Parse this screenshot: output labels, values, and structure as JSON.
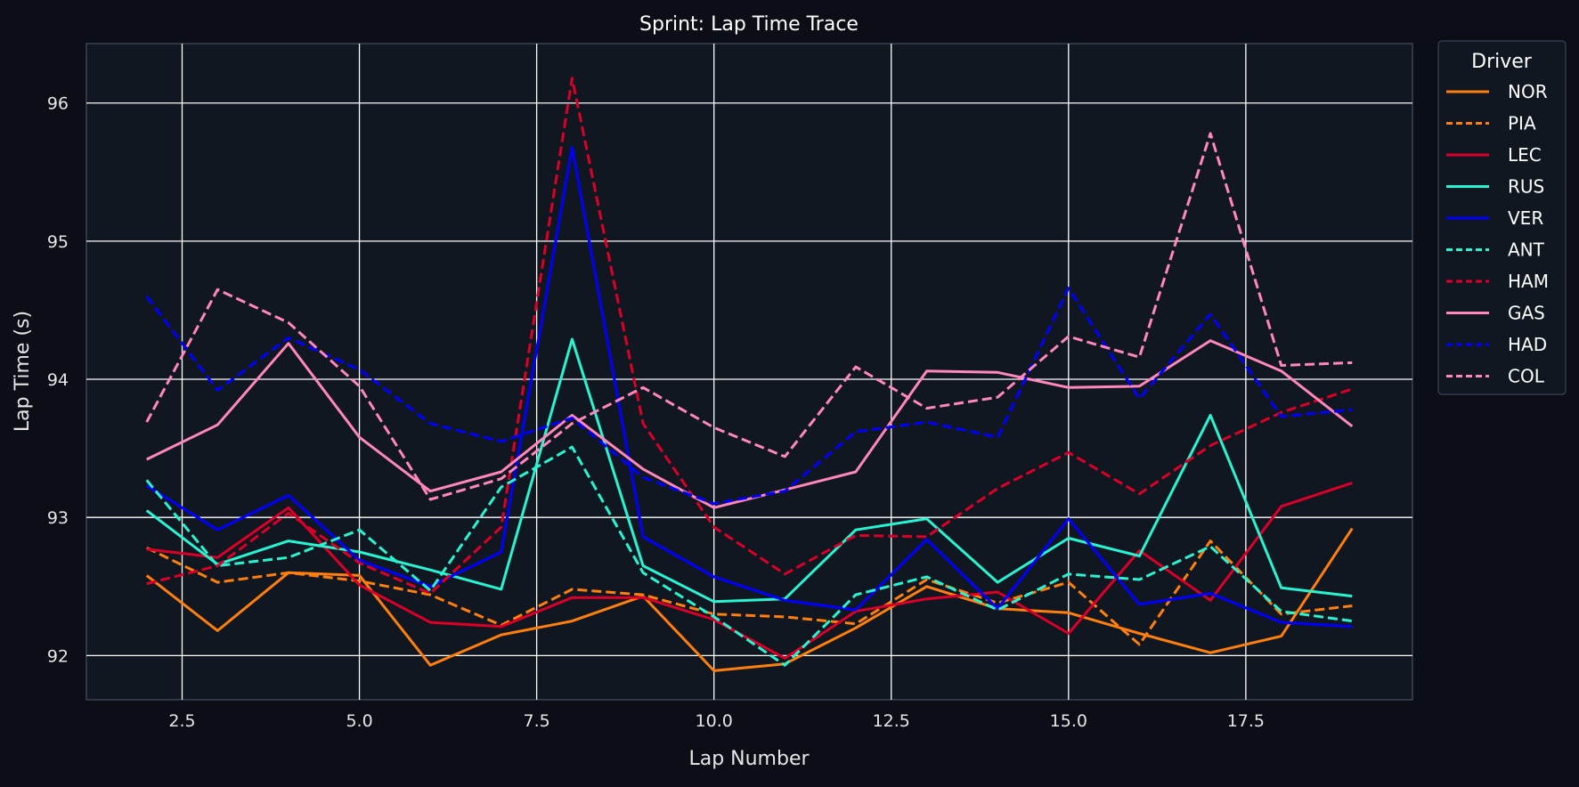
{
  "chart_data": {
    "type": "line",
    "title": "Sprint: Lap Time Trace",
    "xlabel": "Lap Number",
    "ylabel": "Lap Time (s)",
    "xlim": [
      1.15,
      19.85
    ],
    "ylim": [
      91.68,
      96.43
    ],
    "xticks": [
      2.5,
      5.0,
      7.5,
      10.0,
      12.5,
      15.0,
      17.5
    ],
    "xtick_labels": [
      "2.5",
      "5.0",
      "7.5",
      "10.0",
      "12.5",
      "15.0",
      "17.5"
    ],
    "yticks": [
      92,
      93,
      94,
      95,
      96
    ],
    "ytick_labels": [
      "92",
      "93",
      "94",
      "95",
      "96"
    ],
    "grid": true,
    "legend_title": "Driver",
    "legend_placement": "outside-right",
    "x": [
      2,
      3,
      4,
      5,
      6,
      7,
      8,
      9,
      10,
      11,
      12,
      13,
      14,
      15,
      16,
      17,
      18,
      19
    ],
    "series": [
      {
        "name": "NOR",
        "color": "#ff7f0e",
        "dash": "solid",
        "values": [
          92.58,
          92.18,
          92.6,
          92.58,
          91.93,
          92.15,
          92.25,
          92.43,
          91.89,
          91.94,
          92.2,
          92.5,
          92.34,
          92.31,
          92.16,
          92.02,
          92.14,
          92.92
        ]
      },
      {
        "name": "PIA",
        "color": "#ff7f0e",
        "dash": "dashed",
        "values": [
          92.78,
          92.53,
          92.6,
          92.54,
          92.44,
          92.22,
          92.48,
          92.44,
          92.3,
          92.28,
          92.23,
          92.55,
          92.38,
          92.53,
          92.08,
          92.83,
          92.3,
          92.36
        ]
      },
      {
        "name": "LEC",
        "color": "#dc0028",
        "dash": "solid",
        "values": [
          92.77,
          92.71,
          93.07,
          92.51,
          92.24,
          92.21,
          92.42,
          92.42,
          92.26,
          91.98,
          92.32,
          92.41,
          92.46,
          92.16,
          92.76,
          92.4,
          93.08,
          93.25
        ]
      },
      {
        "name": "RUS",
        "color": "#27f4d2",
        "dash": "solid",
        "values": [
          93.05,
          92.66,
          92.83,
          92.75,
          92.62,
          92.48,
          94.29,
          92.65,
          92.39,
          92.41,
          92.91,
          92.99,
          92.53,
          92.85,
          92.72,
          93.74,
          92.49,
          92.43
        ]
      },
      {
        "name": "VER",
        "color": "#0000ff",
        "dash": "solid",
        "values": [
          93.23,
          92.91,
          93.16,
          92.69,
          92.5,
          92.75,
          95.68,
          92.86,
          92.57,
          92.4,
          92.33,
          92.84,
          92.34,
          92.99,
          92.37,
          92.45,
          92.24,
          92.21
        ]
      },
      {
        "name": "ANT",
        "color": "#27f4d2",
        "dash": "dashed",
        "values": [
          93.27,
          92.65,
          92.71,
          92.91,
          92.47,
          93.22,
          93.51,
          92.6,
          92.28,
          91.93,
          92.44,
          92.57,
          92.33,
          92.59,
          92.55,
          92.79,
          92.32,
          92.25
        ]
      },
      {
        "name": "HAM",
        "color": "#dc0028",
        "dash": "dashed",
        "values": [
          92.52,
          92.65,
          93.03,
          92.67,
          92.45,
          92.93,
          96.18,
          93.68,
          92.93,
          92.59,
          92.87,
          92.86,
          93.21,
          93.47,
          93.17,
          93.52,
          93.76,
          93.93
        ]
      },
      {
        "name": "GAS",
        "color": "#ff87bc",
        "dash": "solid",
        "values": [
          93.42,
          93.67,
          94.26,
          93.58,
          93.19,
          93.33,
          93.74,
          93.35,
          93.07,
          93.2,
          93.33,
          94.06,
          94.05,
          93.94,
          93.95,
          94.28,
          94.06,
          93.66
        ]
      },
      {
        "name": "HAD",
        "color": "#0000ff",
        "dash": "dashed",
        "values": [
          94.6,
          93.92,
          94.3,
          94.07,
          93.68,
          93.55,
          93.72,
          93.29,
          93.1,
          93.19,
          93.62,
          93.69,
          93.58,
          94.66,
          93.86,
          94.47,
          93.73,
          93.78
        ]
      },
      {
        "name": "COL",
        "color": "#ff87bc",
        "dash": "dashed",
        "values": [
          93.69,
          94.65,
          94.41,
          93.95,
          93.13,
          93.28,
          93.68,
          93.94,
          93.65,
          93.44,
          94.09,
          93.79,
          93.87,
          94.31,
          94.16,
          95.78,
          94.1,
          94.12
        ]
      }
    ]
  }
}
